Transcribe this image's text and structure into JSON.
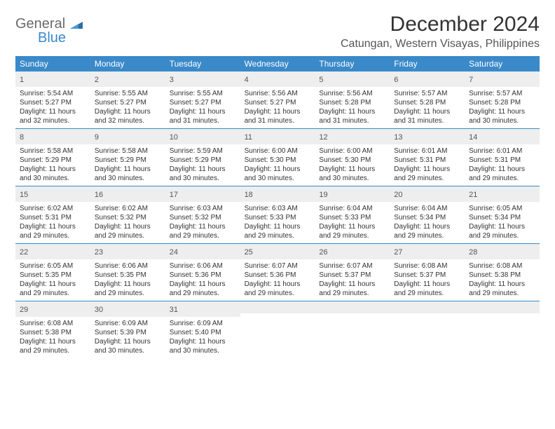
{
  "brand": {
    "general": "General",
    "blue": "Blue"
  },
  "title": "December 2024",
  "location": "Catungan, Western Visayas, Philippines",
  "dayNames": [
    "Sunday",
    "Monday",
    "Tuesday",
    "Wednesday",
    "Thursday",
    "Friday",
    "Saturday"
  ],
  "colors": {
    "headerBg": "#3a89c9",
    "numRowBg": "#eeeeee"
  },
  "weeks": [
    [
      {
        "n": "1",
        "sr": "5:54 AM",
        "ss": "5:27 PM",
        "dl": "11 hours and 32 minutes."
      },
      {
        "n": "2",
        "sr": "5:55 AM",
        "ss": "5:27 PM",
        "dl": "11 hours and 32 minutes."
      },
      {
        "n": "3",
        "sr": "5:55 AM",
        "ss": "5:27 PM",
        "dl": "11 hours and 31 minutes."
      },
      {
        "n": "4",
        "sr": "5:56 AM",
        "ss": "5:27 PM",
        "dl": "11 hours and 31 minutes."
      },
      {
        "n": "5",
        "sr": "5:56 AM",
        "ss": "5:28 PM",
        "dl": "11 hours and 31 minutes."
      },
      {
        "n": "6",
        "sr": "5:57 AM",
        "ss": "5:28 PM",
        "dl": "11 hours and 31 minutes."
      },
      {
        "n": "7",
        "sr": "5:57 AM",
        "ss": "5:28 PM",
        "dl": "11 hours and 30 minutes."
      }
    ],
    [
      {
        "n": "8",
        "sr": "5:58 AM",
        "ss": "5:29 PM",
        "dl": "11 hours and 30 minutes."
      },
      {
        "n": "9",
        "sr": "5:58 AM",
        "ss": "5:29 PM",
        "dl": "11 hours and 30 minutes."
      },
      {
        "n": "10",
        "sr": "5:59 AM",
        "ss": "5:29 PM",
        "dl": "11 hours and 30 minutes."
      },
      {
        "n": "11",
        "sr": "6:00 AM",
        "ss": "5:30 PM",
        "dl": "11 hours and 30 minutes."
      },
      {
        "n": "12",
        "sr": "6:00 AM",
        "ss": "5:30 PM",
        "dl": "11 hours and 30 minutes."
      },
      {
        "n": "13",
        "sr": "6:01 AM",
        "ss": "5:31 PM",
        "dl": "11 hours and 29 minutes."
      },
      {
        "n": "14",
        "sr": "6:01 AM",
        "ss": "5:31 PM",
        "dl": "11 hours and 29 minutes."
      }
    ],
    [
      {
        "n": "15",
        "sr": "6:02 AM",
        "ss": "5:31 PM",
        "dl": "11 hours and 29 minutes."
      },
      {
        "n": "16",
        "sr": "6:02 AM",
        "ss": "5:32 PM",
        "dl": "11 hours and 29 minutes."
      },
      {
        "n": "17",
        "sr": "6:03 AM",
        "ss": "5:32 PM",
        "dl": "11 hours and 29 minutes."
      },
      {
        "n": "18",
        "sr": "6:03 AM",
        "ss": "5:33 PM",
        "dl": "11 hours and 29 minutes."
      },
      {
        "n": "19",
        "sr": "6:04 AM",
        "ss": "5:33 PM",
        "dl": "11 hours and 29 minutes."
      },
      {
        "n": "20",
        "sr": "6:04 AM",
        "ss": "5:34 PM",
        "dl": "11 hours and 29 minutes."
      },
      {
        "n": "21",
        "sr": "6:05 AM",
        "ss": "5:34 PM",
        "dl": "11 hours and 29 minutes."
      }
    ],
    [
      {
        "n": "22",
        "sr": "6:05 AM",
        "ss": "5:35 PM",
        "dl": "11 hours and 29 minutes."
      },
      {
        "n": "23",
        "sr": "6:06 AM",
        "ss": "5:35 PM",
        "dl": "11 hours and 29 minutes."
      },
      {
        "n": "24",
        "sr": "6:06 AM",
        "ss": "5:36 PM",
        "dl": "11 hours and 29 minutes."
      },
      {
        "n": "25",
        "sr": "6:07 AM",
        "ss": "5:36 PM",
        "dl": "11 hours and 29 minutes."
      },
      {
        "n": "26",
        "sr": "6:07 AM",
        "ss": "5:37 PM",
        "dl": "11 hours and 29 minutes."
      },
      {
        "n": "27",
        "sr": "6:08 AM",
        "ss": "5:37 PM",
        "dl": "11 hours and 29 minutes."
      },
      {
        "n": "28",
        "sr": "6:08 AM",
        "ss": "5:38 PM",
        "dl": "11 hours and 29 minutes."
      }
    ],
    [
      {
        "n": "29",
        "sr": "6:08 AM",
        "ss": "5:38 PM",
        "dl": "11 hours and 29 minutes."
      },
      {
        "n": "30",
        "sr": "6:09 AM",
        "ss": "5:39 PM",
        "dl": "11 hours and 30 minutes."
      },
      {
        "n": "31",
        "sr": "6:09 AM",
        "ss": "5:40 PM",
        "dl": "11 hours and 30 minutes."
      },
      null,
      null,
      null,
      null
    ]
  ],
  "labels": {
    "sunrise": "Sunrise: ",
    "sunset": "Sunset: ",
    "daylight": "Daylight: "
  }
}
